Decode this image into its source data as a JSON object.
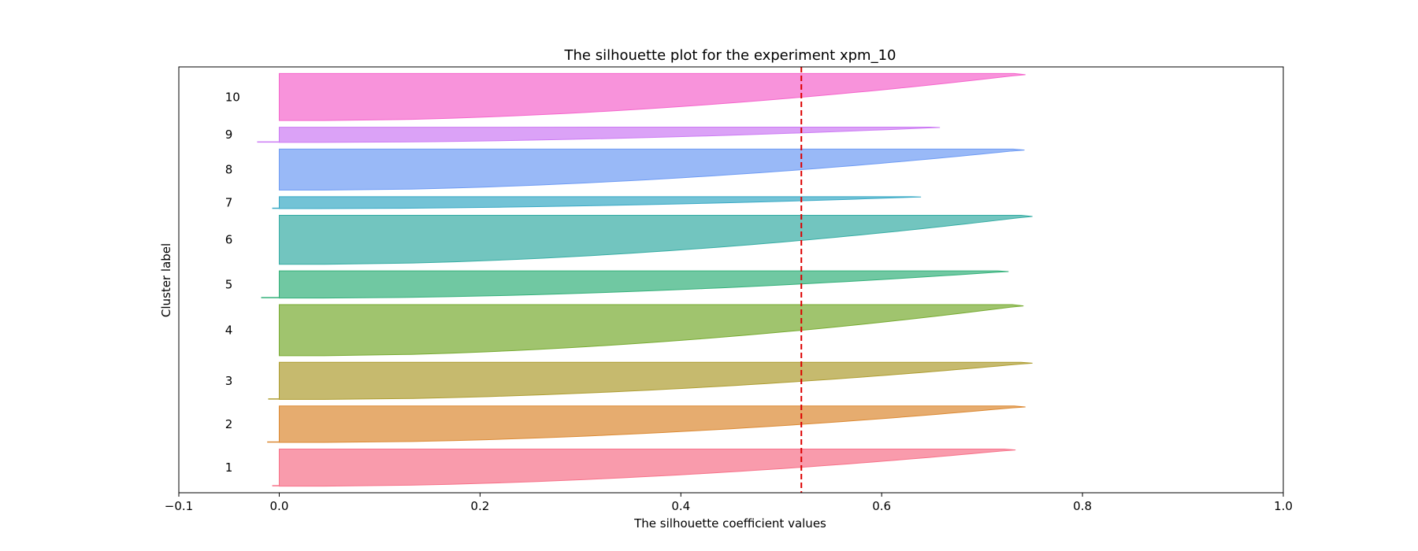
{
  "chart_data": {
    "type": "area",
    "title": "The silhouette plot for the experiment xpm_10",
    "xlabel": "The silhouette coefficient values",
    "ylabel": "Cluster label",
    "xlim": [
      -0.1,
      1.0
    ],
    "xticks": [
      -0.1,
      0.0,
      0.2,
      0.4,
      0.6,
      0.8,
      1.0
    ],
    "xtick_labels": [
      "−0.1",
      "0.0",
      "0.2",
      "0.4",
      "0.6",
      "0.8",
      "1.0"
    ],
    "grid": false,
    "reference_line": {
      "value": 0.52,
      "color": "#dd0000",
      "style": "dashed"
    },
    "clusters": [
      {
        "label": "1",
        "y_start": 10,
        "y_end": 66,
        "min": -0.007,
        "max": 0.74,
        "color": "#f77189"
      },
      {
        "label": "2",
        "y_start": 76,
        "y_end": 131,
        "min": -0.012,
        "max": 0.75,
        "color": "#dc8932"
      },
      {
        "label": "3",
        "y_start": 141,
        "y_end": 197,
        "min": -0.011,
        "max": 0.757,
        "color": "#ae9d31"
      },
      {
        "label": "4",
        "y_start": 207,
        "y_end": 284,
        "min": 0.0,
        "max": 0.748,
        "color": "#77ab31"
      },
      {
        "label": "5",
        "y_start": 294,
        "y_end": 335,
        "min": -0.018,
        "max": 0.733,
        "color": "#33b07a"
      },
      {
        "label": "6",
        "y_start": 345,
        "y_end": 419,
        "min": 0.0,
        "max": 0.757,
        "color": "#36ada4"
      },
      {
        "label": "7",
        "y_start": 429,
        "y_end": 447,
        "min": -0.007,
        "max": 0.645,
        "color": "#38a9c5"
      },
      {
        "label": "8",
        "y_start": 457,
        "y_end": 519,
        "min": 0.0,
        "max": 0.749,
        "color": "#6e9bf4"
      },
      {
        "label": "9",
        "y_start": 529,
        "y_end": 552,
        "min": -0.022,
        "max": 0.664,
        "color": "#cc7af4"
      },
      {
        "label": "10",
        "y_start": 562,
        "y_end": 633,
        "min": 0.0,
        "max": 0.75,
        "color": "#f565cc"
      }
    ],
    "ylim": [
      0,
      643
    ]
  }
}
